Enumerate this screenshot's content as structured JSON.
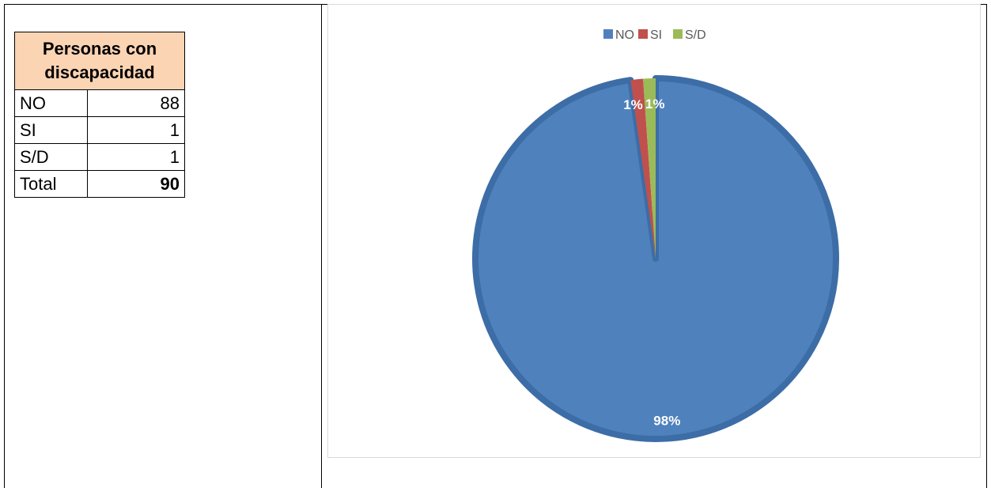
{
  "table": {
    "header": "Personas con discapacidad",
    "rows": [
      {
        "label": "NO",
        "value": "88"
      },
      {
        "label": "SI",
        "value": "1"
      },
      {
        "label": "S/D",
        "value": "1"
      }
    ],
    "total_label": "Total",
    "total_value": "90"
  },
  "chart_data": {
    "type": "pie",
    "categories": [
      "NO",
      "SI",
      "S/D"
    ],
    "values": [
      88,
      1,
      1
    ],
    "data_labels": [
      "98%",
      "1%",
      "1%"
    ],
    "colors": [
      "#4f81bd",
      "#c0504d",
      "#9bbb59"
    ],
    "legend": {
      "position": "top",
      "entries": [
        "NO",
        "SI",
        "S/D"
      ]
    },
    "title": ""
  }
}
